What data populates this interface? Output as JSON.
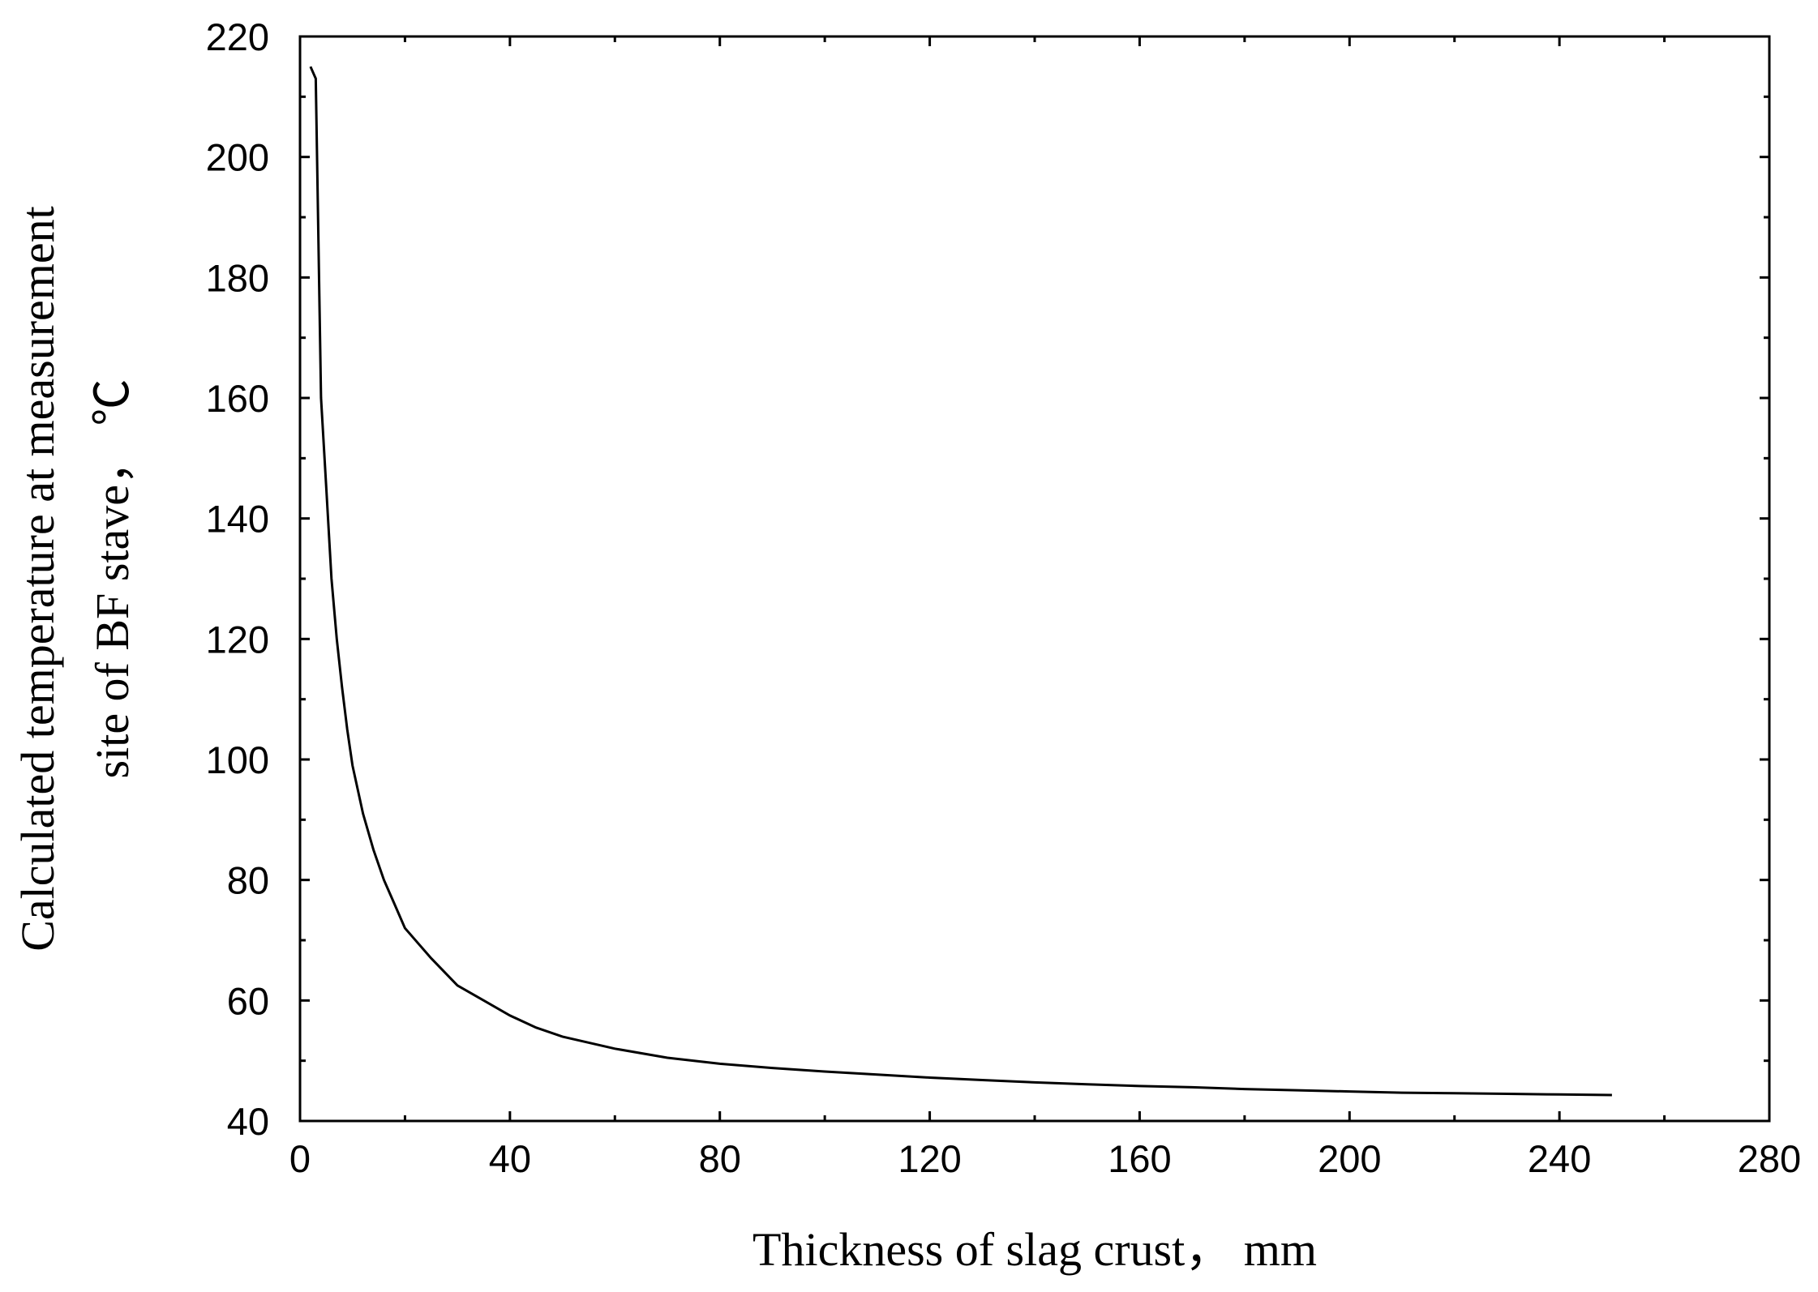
{
  "chart_data": {
    "type": "line",
    "title": "",
    "xlabel": "Thickness of slag crust，  mm",
    "ylabel_line1": "Calculated temperature at measurement",
    "ylabel_line2": "site of BF stave，  ℃",
    "xlim": [
      0,
      280
    ],
    "ylim": [
      40,
      220
    ],
    "xticks": [
      0,
      40,
      80,
      120,
      160,
      200,
      240,
      280
    ],
    "yticks": [
      40,
      60,
      80,
      100,
      120,
      140,
      160,
      180,
      200,
      220
    ],
    "grid": false,
    "legend": "none",
    "line_color": "#000000",
    "series": [
      {
        "x": [
          2,
          3,
          4,
          5,
          6,
          7,
          8,
          9,
          10,
          12,
          14,
          16,
          18,
          20,
          25,
          30,
          35,
          40,
          45,
          50,
          60,
          70,
          80,
          90,
          100,
          110,
          120,
          130,
          140,
          150,
          160,
          170,
          180,
          190,
          200,
          210,
          220,
          230,
          240,
          250
        ],
        "y": [
          215,
          213,
          160,
          145,
          130,
          120,
          112,
          105,
          99,
          91,
          85,
          80,
          76,
          72,
          67,
          62.5,
          60,
          57.5,
          55.5,
          54,
          52,
          50.5,
          49.5,
          48.8,
          48.2,
          47.7,
          47.2,
          46.8,
          46.4,
          46.1,
          45.8,
          45.6,
          45.3,
          45.1,
          44.9,
          44.7,
          44.6,
          44.5,
          44.4,
          44.3
        ]
      }
    ]
  }
}
